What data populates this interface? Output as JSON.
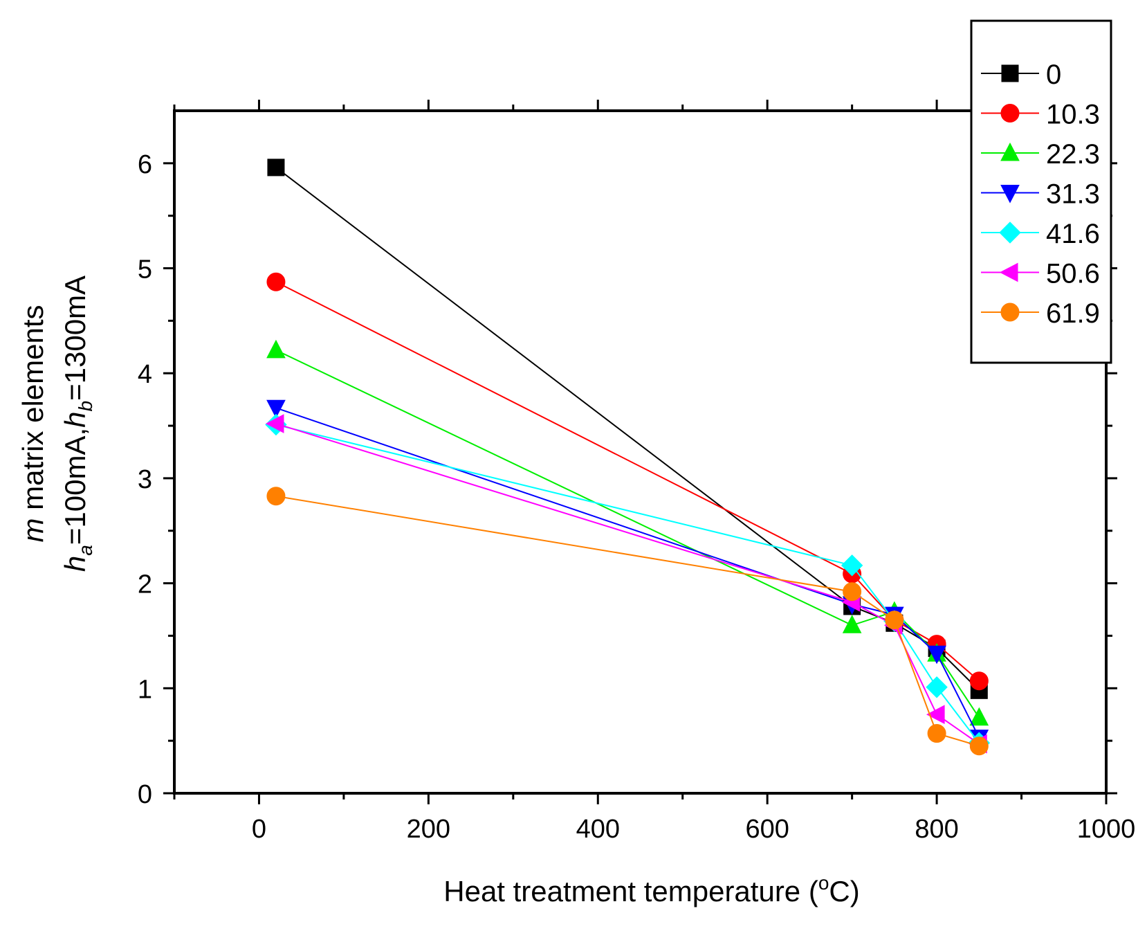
{
  "chart_data": {
    "type": "line",
    "title": "",
    "xlabel": {
      "prefix": "Heat treatment  temperature (",
      "superscript": "o",
      "suffix": "C)"
    },
    "ylabel": {
      "line1": {
        "italic": "m",
        "rest": " matrix elements"
      },
      "line2": {
        "h_a": "h",
        "sub_a": "a",
        "mid": "=100mA,",
        "h_b": "h",
        "sub_b": "b",
        "end": "=1300mA"
      }
    },
    "xlim": [
      -100,
      1000
    ],
    "ylim": [
      0,
      6.5
    ],
    "xticks": [
      0,
      200,
      400,
      600,
      800,
      1000
    ],
    "xtick_labels": [
      "0",
      "200",
      "400",
      "600",
      "800",
      "1000"
    ],
    "yticks": [
      0,
      1,
      2,
      3,
      4,
      5,
      6
    ],
    "ytick_labels": [
      "0",
      "1",
      "2",
      "3",
      "4",
      "5",
      "6"
    ],
    "x": [
      20,
      700,
      750,
      800,
      850
    ],
    "legend_position": "top-right",
    "series": [
      {
        "name": "0",
        "color": "#000000",
        "marker": "square",
        "values": [
          5.96,
          1.78,
          1.62,
          1.38,
          0.98
        ]
      },
      {
        "name": "10.3",
        "color": "#ff0000",
        "marker": "circle",
        "values": [
          4.87,
          2.09,
          1.65,
          1.42,
          1.07
        ]
      },
      {
        "name": "22.3",
        "color": "#00ee00",
        "marker": "triangle-up",
        "values": [
          4.22,
          1.6,
          1.73,
          1.33,
          0.72
        ]
      },
      {
        "name": "31.3",
        "color": "#0000ff",
        "marker": "triangle-down",
        "values": [
          3.67,
          1.8,
          1.7,
          1.33,
          0.53
        ]
      },
      {
        "name": "41.6",
        "color": "#00ffff",
        "marker": "diamond",
        "values": [
          3.51,
          2.17,
          1.64,
          1.01,
          0.48
        ]
      },
      {
        "name": "50.6",
        "color": "#ff00ff",
        "marker": "triangle-left",
        "values": [
          3.52,
          1.82,
          1.6,
          0.75,
          0.47
        ]
      },
      {
        "name": "61.9",
        "color": "#ff8000",
        "marker": "circle",
        "values": [
          2.83,
          1.92,
          1.65,
          0.57,
          0.45
        ]
      }
    ]
  }
}
